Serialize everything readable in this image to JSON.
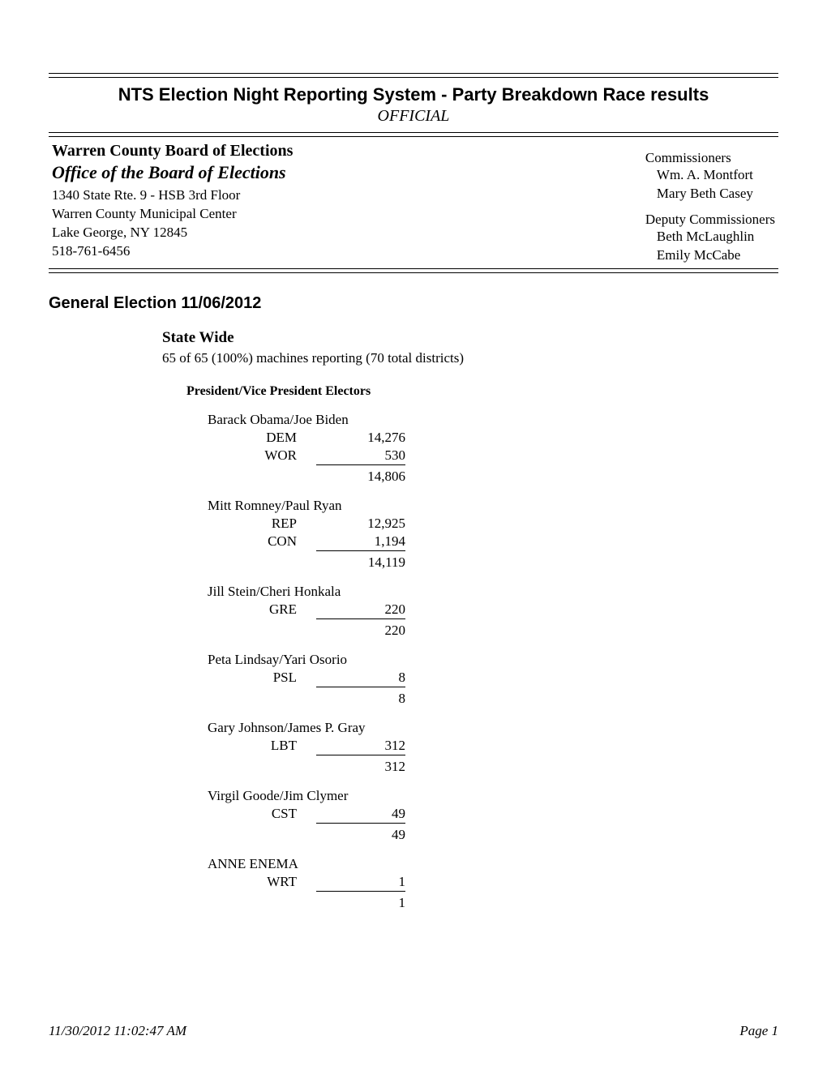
{
  "doc": {
    "title": "NTS Election Night Reporting System - Party Breakdown Race results",
    "subtitle": "OFFICIAL",
    "background_color": "#ffffff",
    "text_color": "#000000",
    "title_font": "Arial",
    "title_fontsize": 22,
    "body_font": "Times New Roman",
    "body_fontsize": 17
  },
  "header": {
    "org_name": "Warren County Board of Elections",
    "office_name": "Office of the Board of Elections",
    "address_line1": "1340 State Rte. 9 - HSB 3rd Floor",
    "address_line2": "Warren County Municipal Center",
    "address_line3": "Lake George, NY  12845",
    "phone": "518-761-6456",
    "commissioners_label": "Commissioners",
    "commissioners": [
      "Wm. A. Montfort",
      "Mary Beth Casey"
    ],
    "deputy_label": "Deputy Commissioners",
    "deputies": [
      "Beth McLaughlin",
      "Emily McCabe"
    ]
  },
  "election": {
    "heading": "General Election    11/06/2012",
    "scope": "State Wide",
    "reporting": "65 of 65 (100%) machines reporting (70 total districts)",
    "race_title": "President/Vice President Electors",
    "candidates": [
      {
        "name": "Barack Obama/Joe Biden",
        "lines": [
          {
            "party": "DEM",
            "votes": "14,276"
          },
          {
            "party": "WOR",
            "votes": "530"
          }
        ],
        "total": "14,806"
      },
      {
        "name": "Mitt Romney/Paul Ryan",
        "lines": [
          {
            "party": "REP",
            "votes": "12,925"
          },
          {
            "party": "CON",
            "votes": "1,194"
          }
        ],
        "total": "14,119"
      },
      {
        "name": "Jill Stein/Cheri Honkala",
        "lines": [
          {
            "party": "GRE",
            "votes": "220"
          }
        ],
        "total": "220"
      },
      {
        "name": "Peta Lindsay/Yari Osorio",
        "lines": [
          {
            "party": "PSL",
            "votes": "8"
          }
        ],
        "total": "8"
      },
      {
        "name": "Gary Johnson/James P. Gray",
        "lines": [
          {
            "party": "LBT",
            "votes": "312"
          }
        ],
        "total": "312"
      },
      {
        "name": "Virgil Goode/Jim Clymer",
        "lines": [
          {
            "party": "CST",
            "votes": "49"
          }
        ],
        "total": "49"
      },
      {
        "name": "ANNE ENEMA",
        "lines": [
          {
            "party": "WRT",
            "votes": "1"
          }
        ],
        "total": "1"
      }
    ]
  },
  "footer": {
    "timestamp": "11/30/2012   11:02:47 AM",
    "page": "Page 1"
  }
}
